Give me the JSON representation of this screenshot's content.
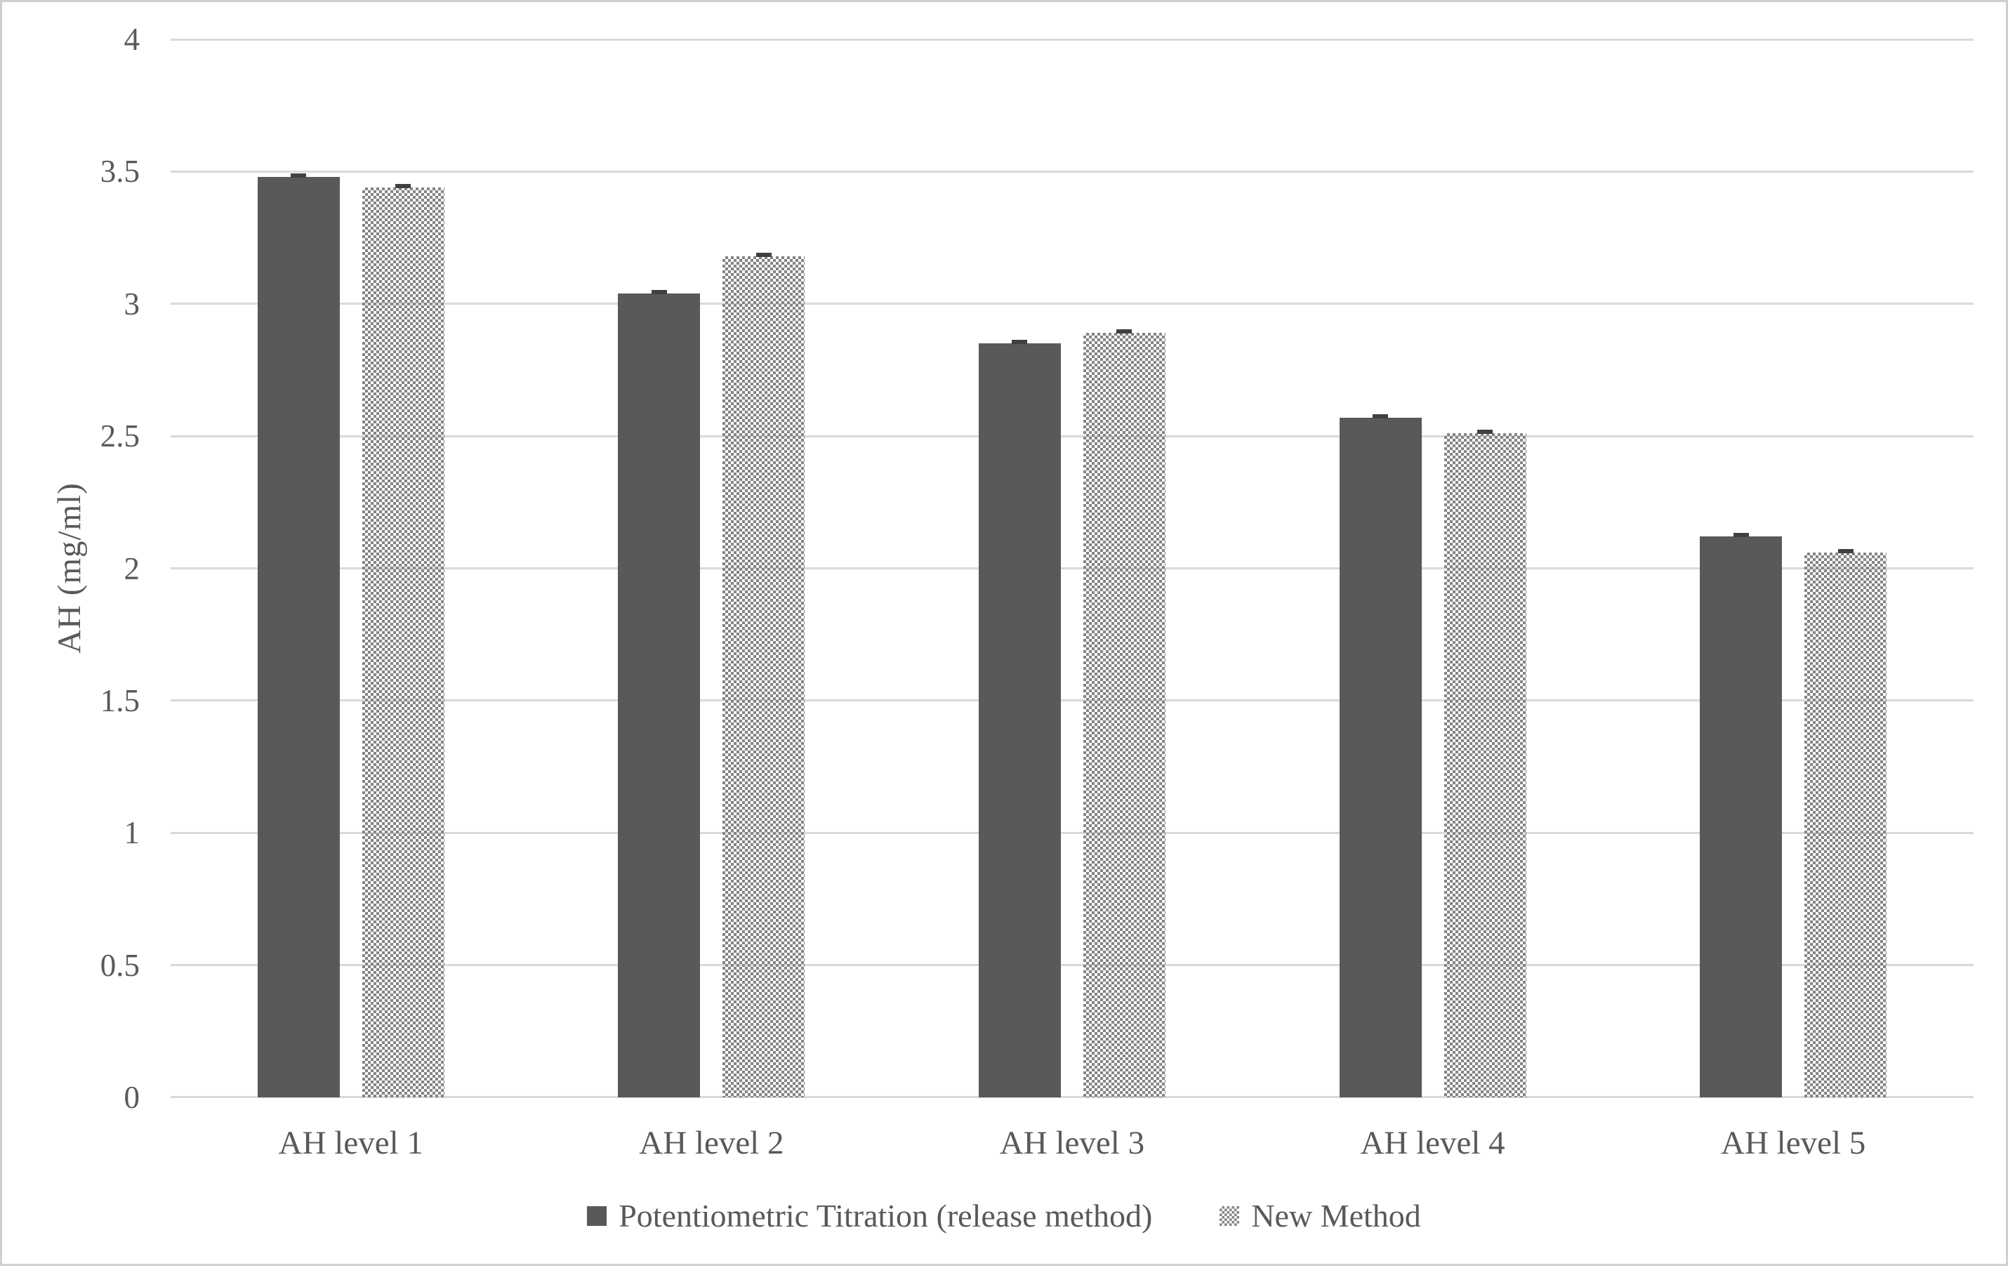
{
  "chart_data": {
    "type": "bar",
    "title": "",
    "xlabel": "",
    "ylabel": "AH (mg/ml)",
    "ylim": [
      0,
      4
    ],
    "ytick_step": 0.5,
    "ytick_labels": [
      "0",
      "0.5",
      "1",
      "1.5",
      "2",
      "2.5",
      "3",
      "3.5",
      "4"
    ],
    "grid": "horizontal",
    "legend_position": "bottom",
    "categories": [
      "AH level 1",
      "AH level 2",
      "AH level 3",
      "AH level 4",
      "AH level 5"
    ],
    "series": [
      {
        "name": "Potentiometric Titration (release method)",
        "style": "solid",
        "color": "#595959",
        "values": [
          3.48,
          3.04,
          2.85,
          2.57,
          2.12
        ],
        "errors": [
          0.01,
          0.01,
          0.01,
          0.01,
          0.01
        ]
      },
      {
        "name": "New Method",
        "style": "checker-pattern",
        "color": "#848484",
        "values": [
          3.44,
          3.18,
          2.89,
          2.51,
          2.06
        ],
        "errors": [
          0.01,
          0.01,
          0.01,
          0.01,
          0.01
        ]
      }
    ]
  },
  "colors": {
    "gridline": "#d9d9d9",
    "axis_line": "#d9d9d9",
    "text": "#595959",
    "frame_border": "#cfcfcf",
    "error_cap": "#404040",
    "background": "#ffffff"
  }
}
